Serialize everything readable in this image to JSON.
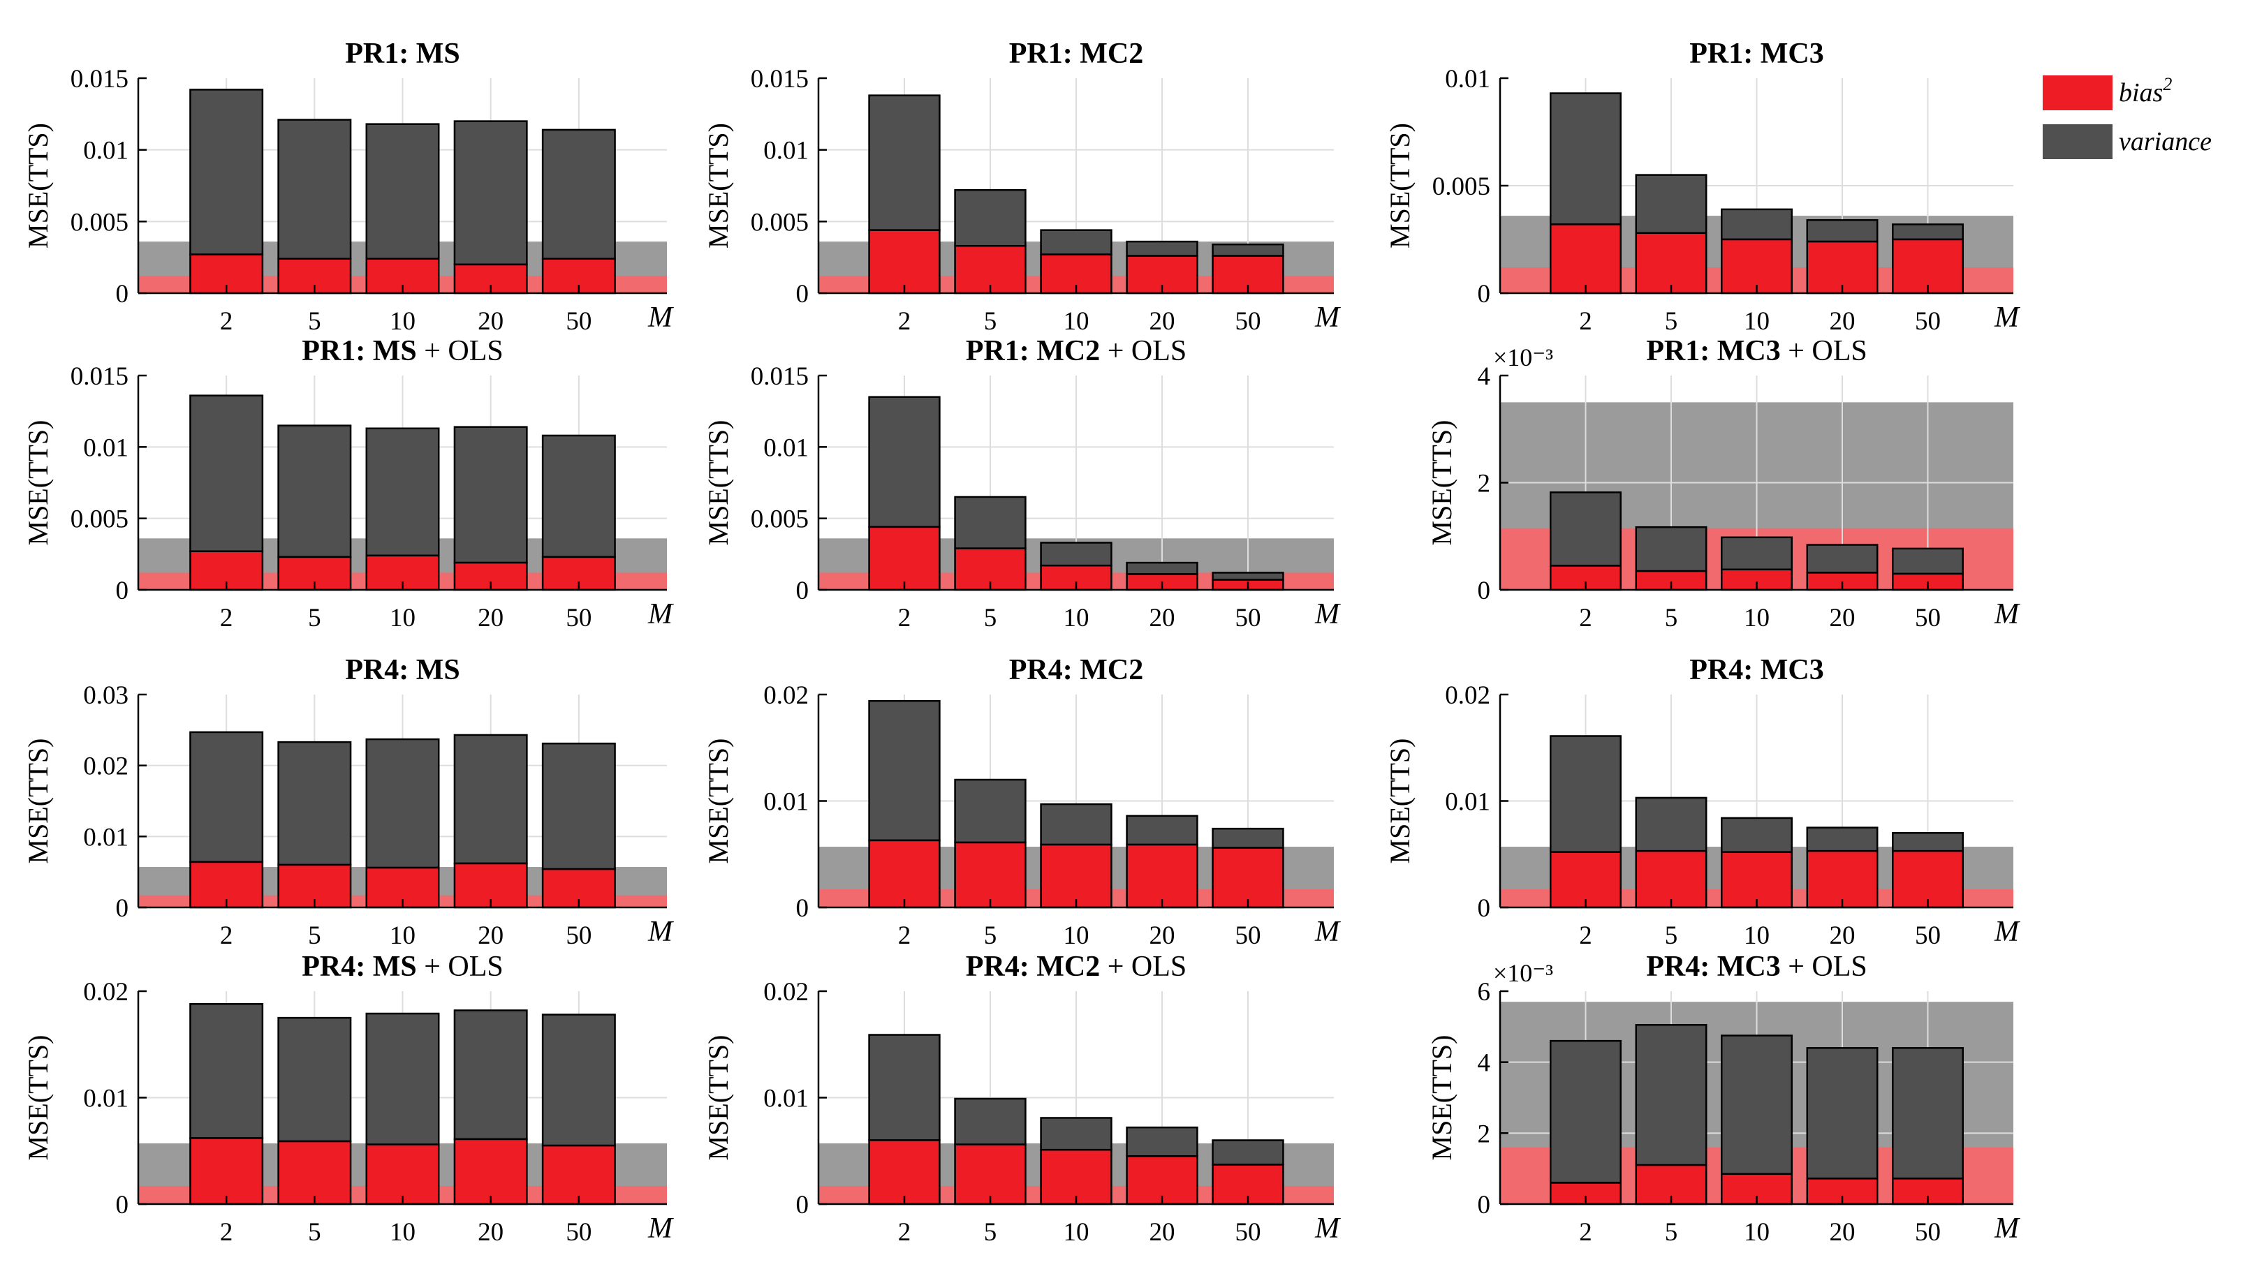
{
  "colors": {
    "bias": "#ee1c25",
    "variance": "#505050",
    "band_bias": "#f06a6e",
    "band_variance": "#9b9b9b",
    "grid": "#dddddd"
  },
  "legend": {
    "bias_label": "bias",
    "bias_sup": "2",
    "variance_label": "variance"
  },
  "chart_data": [
    {
      "type": "bar",
      "title": "PR1:  MS",
      "title_bold": "PR1:  MS",
      "title_rest": "",
      "categories": [
        "2",
        "5",
        "10",
        "20",
        "50"
      ],
      "xlabel": "M",
      "ylabel": "MSE(TTS)",
      "ylim": [
        0,
        0.015
      ],
      "yticks": [
        0,
        0.005,
        0.01,
        0.015
      ],
      "ytick_labels": [
        "0",
        "0.005",
        "0.01",
        "0.015"
      ],
      "scale_label": "",
      "band": {
        "bias": 0.0012,
        "total": 0.0036
      },
      "series": [
        {
          "name": "bias^2",
          "values": [
            0.0027,
            0.0024,
            0.0024,
            0.002,
            0.0024
          ]
        },
        {
          "name": "variance",
          "values": [
            0.0115,
            0.0097,
            0.0094,
            0.01,
            0.009
          ]
        }
      ]
    },
    {
      "type": "bar",
      "title": "PR1:  MC2",
      "title_bold": "PR1:  MC2",
      "title_rest": "",
      "categories": [
        "2",
        "5",
        "10",
        "20",
        "50"
      ],
      "xlabel": "M",
      "ylabel": "MSE(TTS)",
      "ylim": [
        0,
        0.015
      ],
      "yticks": [
        0,
        0.005,
        0.01,
        0.015
      ],
      "ytick_labels": [
        "0",
        "0.005",
        "0.01",
        "0.015"
      ],
      "scale_label": "",
      "band": {
        "bias": 0.0012,
        "total": 0.0036
      },
      "series": [
        {
          "name": "bias^2",
          "values": [
            0.0044,
            0.0033,
            0.0027,
            0.0026,
            0.0026
          ]
        },
        {
          "name": "variance",
          "values": [
            0.0094,
            0.0039,
            0.0017,
            0.001,
            0.0008
          ]
        }
      ]
    },
    {
      "type": "bar",
      "title": "PR1:  MC3",
      "title_bold": "PR1:  MC3",
      "title_rest": "",
      "categories": [
        "2",
        "5",
        "10",
        "20",
        "50"
      ],
      "xlabel": "M",
      "ylabel": "MSE(TTS)",
      "ylim": [
        0,
        0.01
      ],
      "yticks": [
        0,
        0.005,
        0.01
      ],
      "ytick_labels": [
        "0",
        "0.005",
        "0.01"
      ],
      "scale_label": "",
      "band": {
        "bias": 0.0012,
        "total": 0.0036
      },
      "series": [
        {
          "name": "bias^2",
          "values": [
            0.0032,
            0.0028,
            0.0025,
            0.0024,
            0.0025
          ]
        },
        {
          "name": "variance",
          "values": [
            0.0061,
            0.0027,
            0.0014,
            0.001,
            0.0007
          ]
        }
      ]
    },
    {
      "type": "bar",
      "title": "PR1:  MS + OLS",
      "title_bold": "PR1:  MS",
      "title_rest": " + OLS",
      "categories": [
        "2",
        "5",
        "10",
        "20",
        "50"
      ],
      "xlabel": "M",
      "ylabel": "MSE(TTS)",
      "ylim": [
        0,
        0.015
      ],
      "yticks": [
        0,
        0.005,
        0.01,
        0.015
      ],
      "ytick_labels": [
        "0",
        "0.005",
        "0.01",
        "0.015"
      ],
      "scale_label": "",
      "band": {
        "bias": 0.0012,
        "total": 0.0036
      },
      "series": [
        {
          "name": "bias^2",
          "values": [
            0.0027,
            0.0023,
            0.0024,
            0.0019,
            0.0023
          ]
        },
        {
          "name": "variance",
          "values": [
            0.0109,
            0.0092,
            0.0089,
            0.0095,
            0.0085
          ]
        }
      ]
    },
    {
      "type": "bar",
      "title": "PR1:  MC2 + OLS",
      "title_bold": "PR1:  MC2",
      "title_rest": " + OLS",
      "categories": [
        "2",
        "5",
        "10",
        "20",
        "50"
      ],
      "xlabel": "M",
      "ylabel": "MSE(TTS)",
      "ylim": [
        0,
        0.015
      ],
      "yticks": [
        0,
        0.005,
        0.01,
        0.015
      ],
      "ytick_labels": [
        "0",
        "0.005",
        "0.01",
        "0.015"
      ],
      "scale_label": "",
      "band": {
        "bias": 0.0012,
        "total": 0.0036
      },
      "series": [
        {
          "name": "bias^2",
          "values": [
            0.0044,
            0.0029,
            0.0017,
            0.0011,
            0.0007
          ]
        },
        {
          "name": "variance",
          "values": [
            0.0091,
            0.0036,
            0.0016,
            0.0008,
            0.0005
          ]
        }
      ]
    },
    {
      "type": "bar",
      "title": "PR1:  MC3 + OLS",
      "title_bold": "PR1:  MC3",
      "title_rest": " + OLS",
      "categories": [
        "2",
        "5",
        "10",
        "20",
        "50"
      ],
      "xlabel": "M",
      "ylabel": "MSE(TTS)",
      "ylim": [
        0,
        4
      ],
      "yticks": [
        0,
        2,
        4
      ],
      "ytick_labels": [
        "0",
        "2",
        "4"
      ],
      "scale_label": "×10⁻³",
      "band": {
        "bias": 1.15,
        "total": 3.5
      },
      "series": [
        {
          "name": "bias^2",
          "values": [
            0.45,
            0.35,
            0.38,
            0.32,
            0.3
          ]
        },
        {
          "name": "variance",
          "values": [
            1.37,
            0.82,
            0.6,
            0.52,
            0.47
          ]
        }
      ]
    },
    {
      "type": "bar",
      "title": "PR4:  MS",
      "title_bold": "PR4:  MS",
      "title_rest": "",
      "categories": [
        "2",
        "5",
        "10",
        "20",
        "50"
      ],
      "xlabel": "M",
      "ylabel": "MSE(TTS)",
      "ylim": [
        0,
        0.03
      ],
      "yticks": [
        0,
        0.01,
        0.02,
        0.03
      ],
      "ytick_labels": [
        "0",
        "0.01",
        "0.02",
        "0.03"
      ],
      "scale_label": "",
      "band": {
        "bias": 0.0017,
        "total": 0.0057
      },
      "series": [
        {
          "name": "bias^2",
          "values": [
            0.0064,
            0.006,
            0.0056,
            0.0062,
            0.0054
          ]
        },
        {
          "name": "variance",
          "values": [
            0.0183,
            0.0173,
            0.0181,
            0.0181,
            0.0177
          ]
        }
      ]
    },
    {
      "type": "bar",
      "title": "PR4:  MC2",
      "title_bold": "PR4:  MC2",
      "title_rest": "",
      "categories": [
        "2",
        "5",
        "10",
        "20",
        "50"
      ],
      "xlabel": "M",
      "ylabel": "MSE(TTS)",
      "ylim": [
        0,
        0.02
      ],
      "yticks": [
        0,
        0.01,
        0.02
      ],
      "ytick_labels": [
        "0",
        "0.01",
        "0.02"
      ],
      "scale_label": "",
      "band": {
        "bias": 0.0017,
        "total": 0.0057
      },
      "series": [
        {
          "name": "bias^2",
          "values": [
            0.0063,
            0.0061,
            0.0059,
            0.0059,
            0.0056
          ]
        },
        {
          "name": "variance",
          "values": [
            0.0131,
            0.0059,
            0.0038,
            0.0027,
            0.0018
          ]
        }
      ]
    },
    {
      "type": "bar",
      "title": "PR4:  MC3",
      "title_bold": "PR4:  MC3",
      "title_rest": "",
      "categories": [
        "2",
        "5",
        "10",
        "20",
        "50"
      ],
      "xlabel": "M",
      "ylabel": "MSE(TTS)",
      "ylim": [
        0,
        0.02
      ],
      "yticks": [
        0,
        0.01,
        0.02
      ],
      "ytick_labels": [
        "0",
        "0.01",
        "0.02"
      ],
      "scale_label": "",
      "band": {
        "bias": 0.0017,
        "total": 0.0057
      },
      "series": [
        {
          "name": "bias^2",
          "values": [
            0.0052,
            0.0053,
            0.0052,
            0.0053,
            0.0053
          ]
        },
        {
          "name": "variance",
          "values": [
            0.0109,
            0.005,
            0.0032,
            0.0022,
            0.0017
          ]
        }
      ]
    },
    {
      "type": "bar",
      "title": "PR4:  MS + OLS",
      "title_bold": "PR4:  MS",
      "title_rest": " + OLS",
      "categories": [
        "2",
        "5",
        "10",
        "20",
        "50"
      ],
      "xlabel": "M",
      "ylabel": "MSE(TTS)",
      "ylim": [
        0,
        0.02
      ],
      "yticks": [
        0,
        0.01,
        0.02
      ],
      "ytick_labels": [
        "0",
        "0.01",
        "0.02"
      ],
      "scale_label": "",
      "band": {
        "bias": 0.0017,
        "total": 0.0057
      },
      "series": [
        {
          "name": "bias^2",
          "values": [
            0.0062,
            0.0059,
            0.0056,
            0.0061,
            0.0055
          ]
        },
        {
          "name": "variance",
          "values": [
            0.0126,
            0.0116,
            0.0123,
            0.0121,
            0.0123
          ]
        }
      ]
    },
    {
      "type": "bar",
      "title": "PR4:  MC2 + OLS",
      "title_bold": "PR4:  MC2",
      "title_rest": " + OLS",
      "categories": [
        "2",
        "5",
        "10",
        "20",
        "50"
      ],
      "xlabel": "M",
      "ylabel": "MSE(TTS)",
      "ylim": [
        0,
        0.02
      ],
      "yticks": [
        0,
        0.01,
        0.02
      ],
      "ytick_labels": [
        "0",
        "0.01",
        "0.02"
      ],
      "scale_label": "",
      "band": {
        "bias": 0.0017,
        "total": 0.0057
      },
      "series": [
        {
          "name": "bias^2",
          "values": [
            0.006,
            0.0056,
            0.0051,
            0.0045,
            0.0037
          ]
        },
        {
          "name": "variance",
          "values": [
            0.0099,
            0.0043,
            0.003,
            0.0027,
            0.0023
          ]
        }
      ]
    },
    {
      "type": "bar",
      "title": "PR4:  MC3 + OLS",
      "title_bold": "PR4:  MC3",
      "title_rest": " + OLS",
      "categories": [
        "2",
        "5",
        "10",
        "20",
        "50"
      ],
      "xlabel": "M",
      "ylabel": "MSE(TTS)",
      "ylim": [
        0,
        6
      ],
      "yticks": [
        0,
        2,
        4,
        6
      ],
      "ytick_labels": [
        "0",
        "2",
        "4",
        "6"
      ],
      "scale_label": "×10⁻³",
      "band": {
        "bias": 1.6,
        "total": 5.7
      },
      "series": [
        {
          "name": "bias^2",
          "values": [
            0.6,
            1.1,
            0.85,
            0.72,
            0.72
          ]
        },
        {
          "name": "variance",
          "values": [
            4.0,
            3.95,
            3.9,
            3.68,
            3.68
          ]
        }
      ]
    }
  ]
}
